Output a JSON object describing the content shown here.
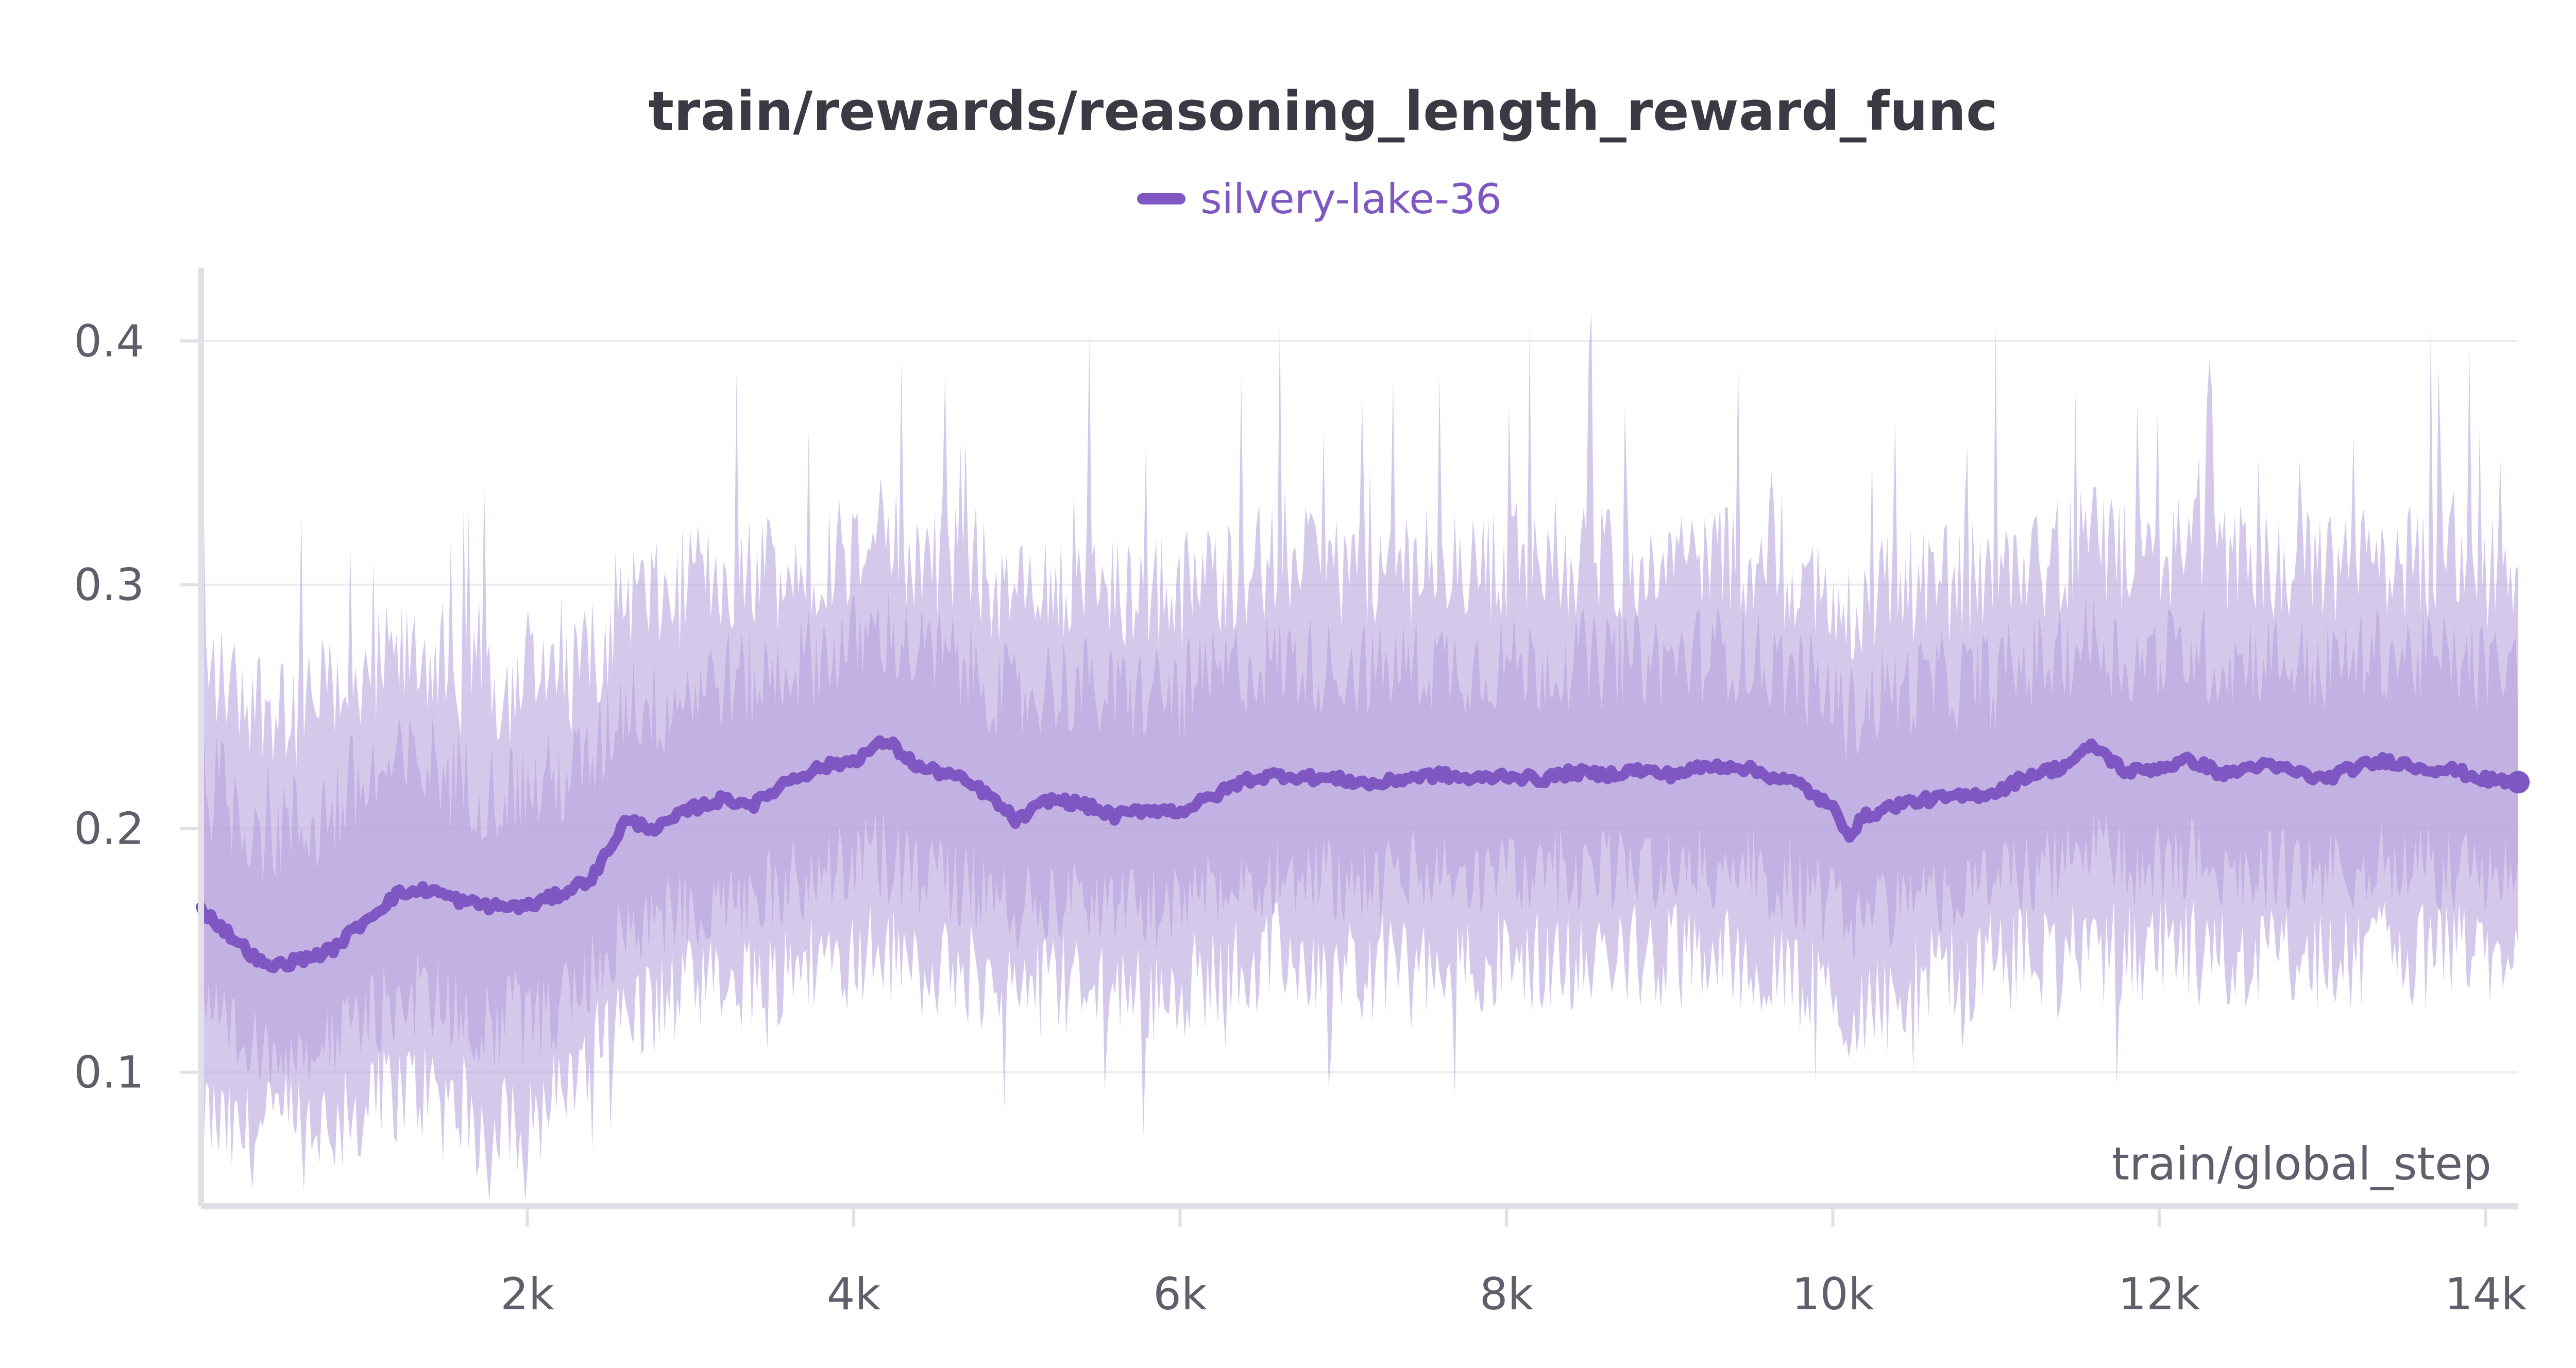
{
  "chart_data": {
    "type": "line",
    "title": "train/rewards/reasoning_length_reward_func",
    "xlabel": "train/global_step",
    "ylabel": "",
    "xlim": [
      0,
      14200
    ],
    "ylim": [
      0.045,
      0.43
    ],
    "xticks": [
      2000,
      4000,
      6000,
      8000,
      10000,
      12000,
      14000
    ],
    "xtick_labels": [
      "2k",
      "4k",
      "6k",
      "8k",
      "10k",
      "12k",
      "14k"
    ],
    "yticks": [
      0.1,
      0.2,
      0.3,
      0.4
    ],
    "ytick_labels": [
      "0.1",
      "0.2",
      "0.3",
      "0.4"
    ],
    "grid": true,
    "legend_position": "top-center",
    "colors": {
      "line": "#7e57c2",
      "band": "#b39ddb",
      "grid": "#ececf1",
      "axis": "#e0e0e6"
    },
    "series": [
      {
        "name": "silvery-lake-36",
        "x": [
          0,
          200,
          400,
          600,
          800,
          1000,
          1200,
          1400,
          1600,
          1800,
          2000,
          2200,
          2400,
          2600,
          2800,
          3000,
          3200,
          3400,
          3600,
          3800,
          4000,
          4200,
          4400,
          4600,
          4800,
          5000,
          5200,
          5400,
          5600,
          5800,
          6000,
          6200,
          6400,
          6600,
          6800,
          7000,
          7200,
          7400,
          7600,
          7800,
          8000,
          8200,
          8400,
          8600,
          8800,
          9000,
          9200,
          9400,
          9600,
          9800,
          10000,
          10100,
          10200,
          10400,
          10600,
          10800,
          11000,
          11200,
          11400,
          11600,
          11800,
          12000,
          12200,
          12400,
          12600,
          12800,
          13000,
          13200,
          13400,
          13600,
          13800,
          14000,
          14200
        ],
        "values": [
          0.167,
          0.155,
          0.143,
          0.146,
          0.15,
          0.162,
          0.173,
          0.175,
          0.17,
          0.168,
          0.168,
          0.173,
          0.18,
          0.203,
          0.2,
          0.208,
          0.212,
          0.21,
          0.22,
          0.225,
          0.228,
          0.236,
          0.225,
          0.222,
          0.215,
          0.203,
          0.212,
          0.21,
          0.205,
          0.208,
          0.207,
          0.213,
          0.22,
          0.222,
          0.221,
          0.22,
          0.218,
          0.221,
          0.222,
          0.22,
          0.222,
          0.22,
          0.223,
          0.222,
          0.224,
          0.222,
          0.225,
          0.226,
          0.222,
          0.218,
          0.208,
          0.198,
          0.205,
          0.21,
          0.212,
          0.213,
          0.215,
          0.222,
          0.225,
          0.234,
          0.223,
          0.225,
          0.228,
          0.222,
          0.226,
          0.224,
          0.22,
          0.225,
          0.228,
          0.225,
          0.224,
          0.22,
          0.219
        ],
        "band_low": [
          0.085,
          0.075,
          0.078,
          0.085,
          0.08,
          0.085,
          0.095,
          0.095,
          0.088,
          0.08,
          0.085,
          0.09,
          0.11,
          0.125,
          0.13,
          0.135,
          0.135,
          0.14,
          0.145,
          0.15,
          0.15,
          0.15,
          0.148,
          0.145,
          0.14,
          0.135,
          0.14,
          0.14,
          0.135,
          0.135,
          0.138,
          0.142,
          0.145,
          0.15,
          0.148,
          0.145,
          0.145,
          0.148,
          0.15,
          0.148,
          0.148,
          0.148,
          0.15,
          0.15,
          0.15,
          0.15,
          0.15,
          0.15,
          0.145,
          0.14,
          0.132,
          0.125,
          0.132,
          0.138,
          0.14,
          0.142,
          0.145,
          0.15,
          0.15,
          0.155,
          0.15,
          0.15,
          0.152,
          0.148,
          0.15,
          0.15,
          0.146,
          0.15,
          0.152,
          0.15,
          0.15,
          0.148,
          0.148
        ],
        "band_high": [
          0.265,
          0.255,
          0.25,
          0.245,
          0.255,
          0.265,
          0.265,
          0.27,
          0.26,
          0.255,
          0.255,
          0.258,
          0.268,
          0.295,
          0.29,
          0.298,
          0.302,
          0.3,
          0.305,
          0.31,
          0.315,
          0.318,
          0.31,
          0.308,
          0.3,
          0.29,
          0.3,
          0.298,
          0.292,
          0.295,
          0.295,
          0.3,
          0.305,
          0.308,
          0.305,
          0.305,
          0.302,
          0.305,
          0.306,
          0.305,
          0.307,
          0.305,
          0.308,
          0.306,
          0.308,
          0.306,
          0.31,
          0.31,
          0.305,
          0.3,
          0.292,
          0.285,
          0.292,
          0.295,
          0.298,
          0.298,
          0.3,
          0.305,
          0.308,
          0.315,
          0.305,
          0.308,
          0.31,
          0.305,
          0.308,
          0.306,
          0.302,
          0.306,
          0.308,
          0.306,
          0.306,
          0.302,
          0.3
        ]
      }
    ]
  }
}
